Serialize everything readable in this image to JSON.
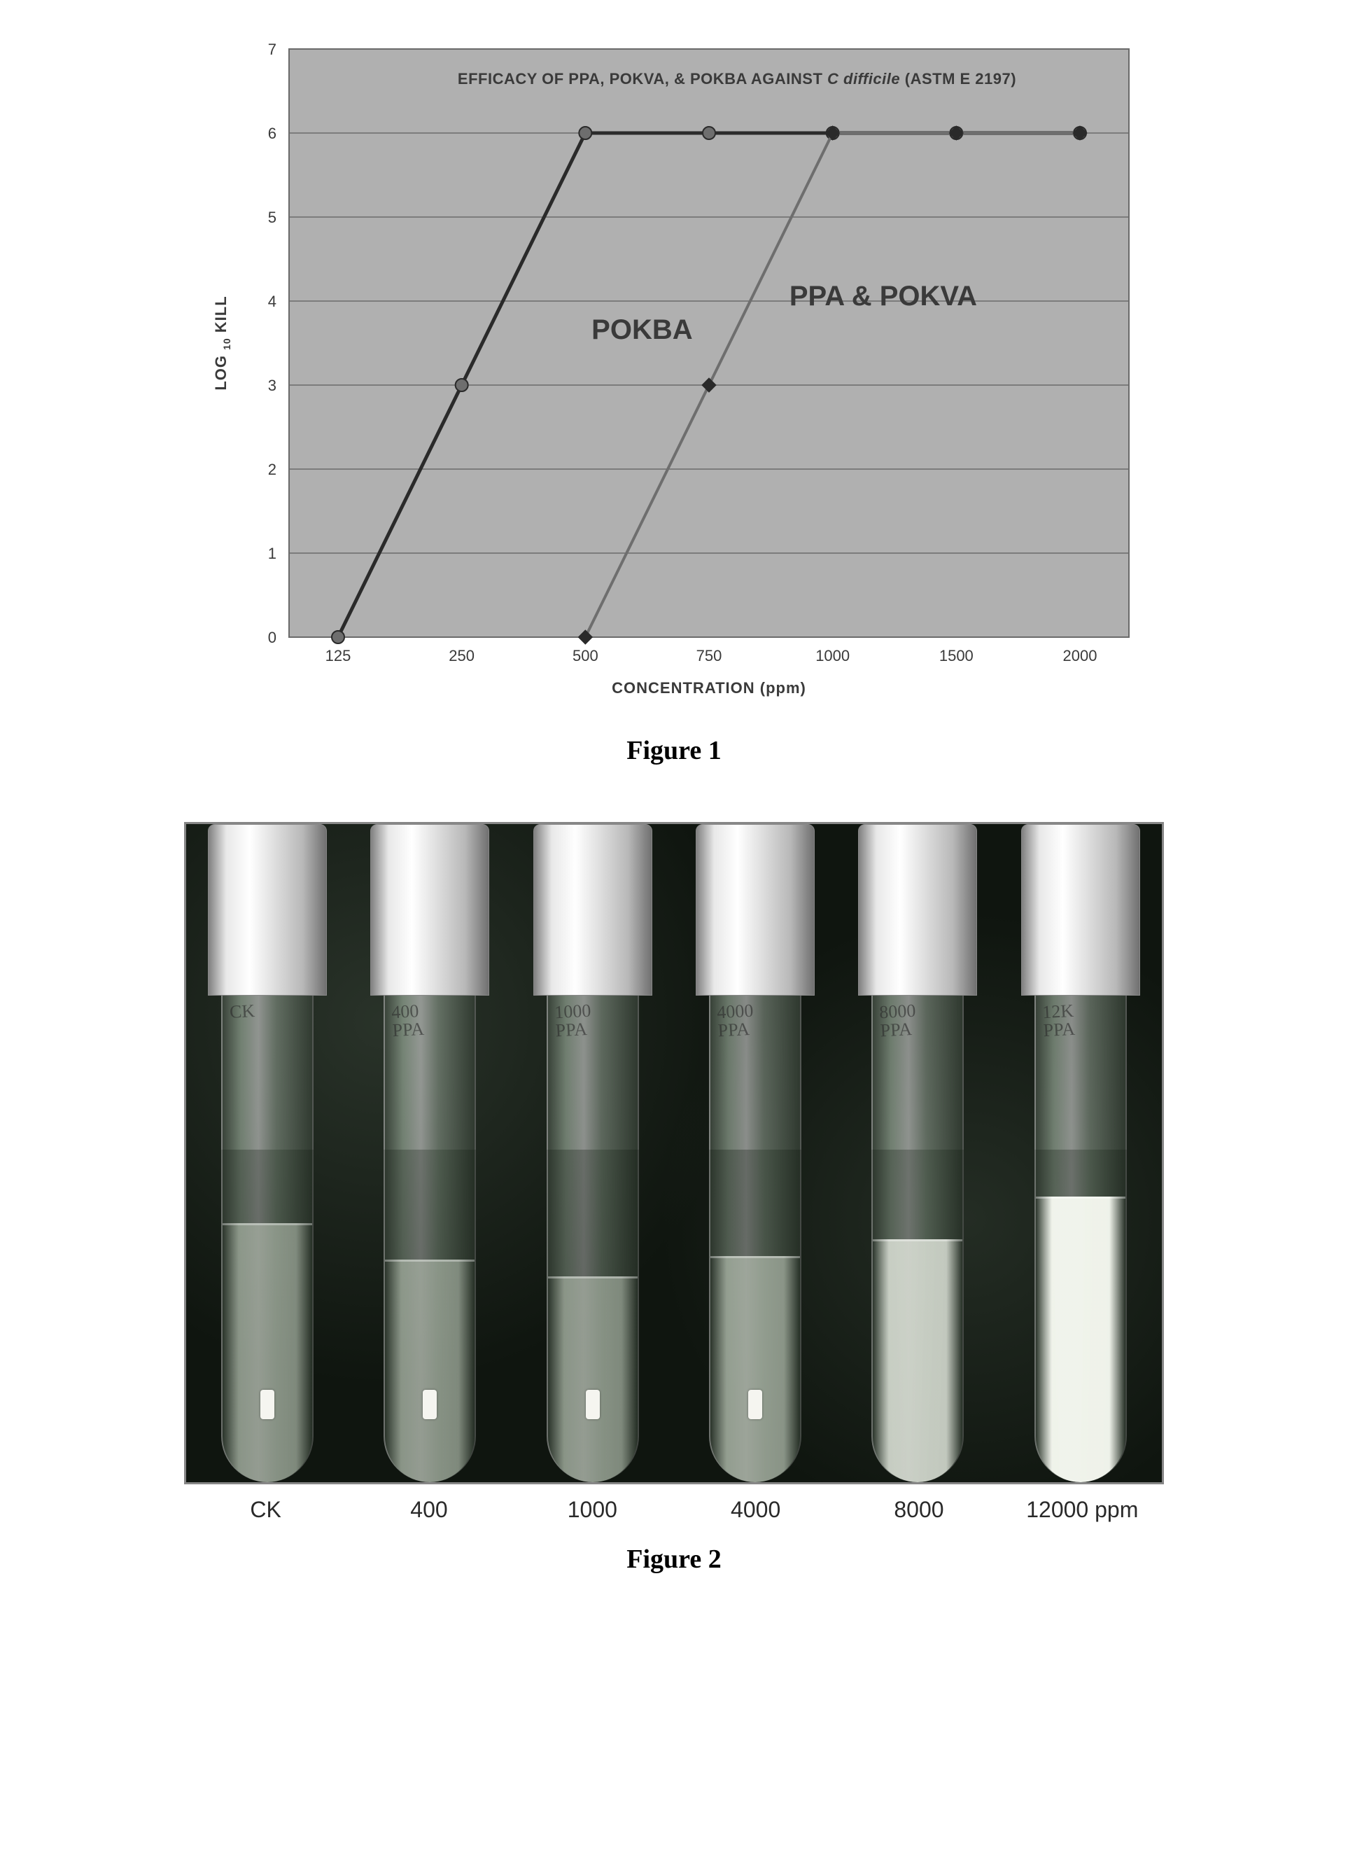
{
  "figure1": {
    "chart": {
      "type": "line",
      "title": "EFFICACY OF PPA, POKVA, & POKBA AGAINST C difficile (ASTM E 2197)",
      "title_fontsize": 22,
      "title_italic_segment": "C difficile",
      "xlabel": "CONCENTRATION (ppm)",
      "ylabel_prefix": "LOG",
      "ylabel_sub": "10",
      "ylabel_suffix": " KILL",
      "label_fontsize": 22,
      "x_categories": [
        125,
        250,
        500,
        750,
        1000,
        1500,
        2000
      ],
      "ylim": [
        0,
        7
      ],
      "ytick_step": 1,
      "background_color": "#b0b0b0",
      "plot_bg_color": "#b0b0b0",
      "grid_color": "#6a6a6a",
      "grid_width": 1.5,
      "axis_color": "#3a3a3a",
      "tick_fontsize": 22,
      "series": [
        {
          "name": "POKBA",
          "label": "POKBA",
          "label_pos": {
            "cat_index": 2.05,
            "y": 3.55
          },
          "color": "#2a2a2a",
          "line_width": 5,
          "marker": "circle",
          "marker_size": 18,
          "marker_fill": "#6e6e6e",
          "marker_stroke": "#2a2a2a",
          "points": [
            {
              "cat_index": 0,
              "y": 0
            },
            {
              "cat_index": 1,
              "y": 3
            },
            {
              "cat_index": 2,
              "y": 6
            },
            {
              "cat_index": 3,
              "y": 6
            },
            {
              "cat_index": 4,
              "y": 6
            },
            {
              "cat_index": 5,
              "y": 6
            },
            {
              "cat_index": 6,
              "y": 6
            }
          ]
        },
        {
          "name": "PPA & POKVA",
          "label": "PPA & POKVA",
          "label_pos": {
            "cat_index": 3.65,
            "y": 3.95
          },
          "color": "#6e6e6e",
          "line_width": 4,
          "marker": "diamond",
          "marker_size": 20,
          "marker_fill": "#2a2a2a",
          "marker_stroke": "#2a2a2a",
          "points": [
            {
              "cat_index": 2,
              "y": 0
            },
            {
              "cat_index": 3,
              "y": 3
            },
            {
              "cat_index": 4,
              "y": 6
            },
            {
              "cat_index": 5,
              "y": 6
            },
            {
              "cat_index": 6,
              "y": 6
            }
          ]
        }
      ]
    },
    "caption": "Figure 1"
  },
  "figure2": {
    "panel": {
      "background_color": "#0f150f",
      "border_color": "#878787",
      "tubes": [
        {
          "label": "CK",
          "handwritten": "CK",
          "liquid_height_pct": 78,
          "liquid_color": "rgba(190,200,185,0.55)",
          "turbid": false
        },
        {
          "label": "400",
          "handwritten": "400\nPPA",
          "liquid_height_pct": 67,
          "liquid_color": "rgba(190,200,185,0.55)",
          "turbid": false
        },
        {
          "label": "1000",
          "handwritten": "1000\nPPA",
          "liquid_height_pct": 62,
          "liquid_color": "rgba(190,200,185,0.55)",
          "turbid": false
        },
        {
          "label": "4000",
          "handwritten": "4000\nPPA",
          "liquid_height_pct": 68,
          "liquid_color": "rgba(195,205,190,0.6)",
          "turbid": false
        },
        {
          "label": "8000",
          "handwritten": "8000\nPPA",
          "liquid_height_pct": 73,
          "liquid_color": "rgba(225,230,220,0.82)",
          "turbid": true
        },
        {
          "label": "12000 ppm",
          "handwritten": "12K\nPPA",
          "liquid_height_pct": 86,
          "liquid_color": "rgba(245,248,240,0.97)",
          "turbid": true
        }
      ],
      "x_unit": "ppm"
    },
    "caption": "Figure 2"
  }
}
